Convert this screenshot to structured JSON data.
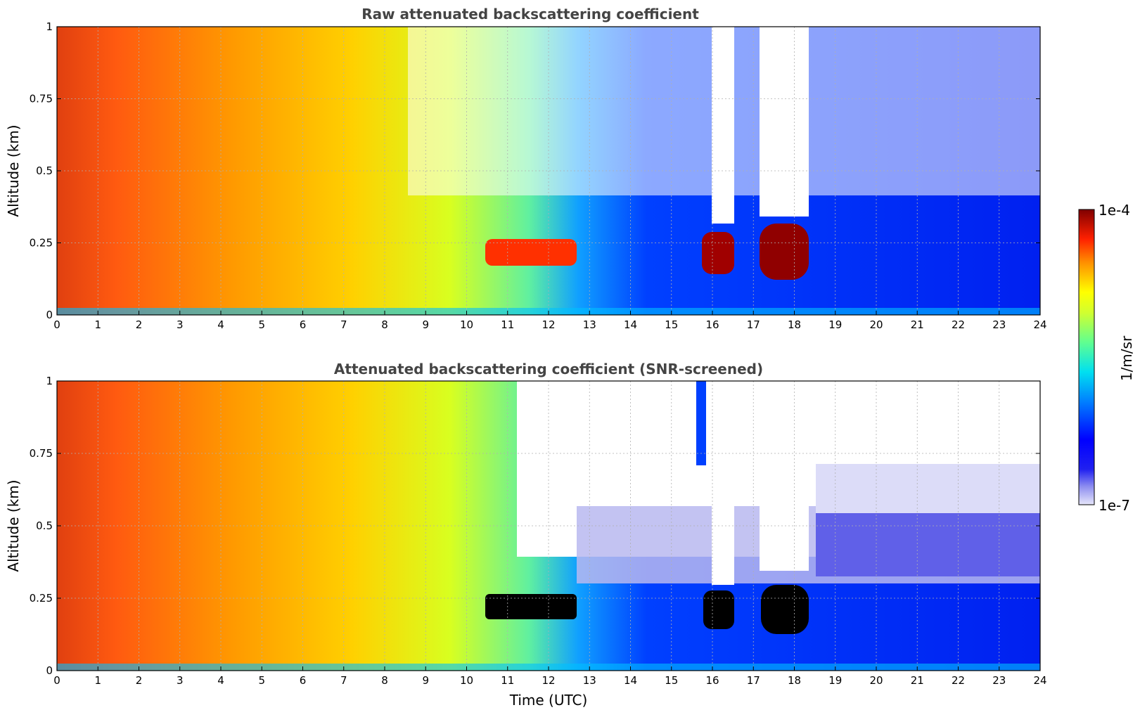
{
  "chart_data": [
    {
      "type": "heatmap",
      "title": "Raw attenuated backscattering coefficient",
      "xlabel": "",
      "ylabel": "Altitude (km)",
      "xlim": [
        0,
        24
      ],
      "ylim": [
        0,
        1
      ],
      "x_ticks": [
        "0",
        "1",
        "2",
        "3",
        "4",
        "5",
        "6",
        "7",
        "8",
        "9",
        "10",
        "11",
        "12",
        "13",
        "14",
        "15",
        "16",
        "17",
        "18",
        "19",
        "20",
        "21",
        "22",
        "23",
        "24"
      ],
      "y_ticks": [
        "0",
        "0.25",
        "0.5",
        "0.75",
        "1"
      ],
      "grid": true,
      "features": [
        {
          "name": "fog / aerosol layer",
          "t_start": 0,
          "t_end": 7,
          "alt_top": 1.0,
          "intensity": "high"
        },
        {
          "name": "cloud band",
          "t_start": 10.5,
          "t_end": 12.8,
          "alt_bottom": 0.15,
          "alt_top": 0.3,
          "intensity": "very high"
        },
        {
          "name": "cloud",
          "t_start": 15.8,
          "t_end": 16.5,
          "alt_bottom": 0.15,
          "alt_top": 0.3,
          "intensity": "very high"
        },
        {
          "name": "cloud",
          "t_start": 17.1,
          "t_end": 18.2,
          "alt_bottom": 0.12,
          "alt_top": 0.33,
          "intensity": "very high"
        }
      ]
    },
    {
      "type": "heatmap",
      "title": "Attenuated backscattering coefficient (SNR-screened)",
      "xlabel": "Time (UTC)",
      "ylabel": "Altitude (km)",
      "xlim": [
        0,
        24
      ],
      "ylim": [
        0,
        1
      ],
      "x_ticks": [
        "0",
        "1",
        "2",
        "3",
        "4",
        "5",
        "6",
        "7",
        "8",
        "9",
        "10",
        "11",
        "12",
        "13",
        "14",
        "15",
        "16",
        "17",
        "18",
        "19",
        "20",
        "21",
        "22",
        "23",
        "24"
      ],
      "y_ticks": [
        "0",
        "0.25",
        "0.5",
        "0.75",
        "1"
      ],
      "grid": true,
      "features": [
        {
          "name": "fog / aerosol layer",
          "t_start": 0,
          "t_end": 7,
          "alt_top": 1.0,
          "intensity": "high"
        },
        {
          "name": "saturated cloud band",
          "t_start": 10.5,
          "t_end": 12.8,
          "alt_bottom": 0.18,
          "alt_top": 0.3,
          "intensity": "saturated"
        },
        {
          "name": "saturated cloud",
          "t_start": 15.8,
          "t_end": 16.5,
          "alt_bottom": 0.15,
          "alt_top": 0.28,
          "intensity": "saturated"
        },
        {
          "name": "saturated cloud",
          "t_start": 17.1,
          "t_end": 18.2,
          "alt_bottom": 0.13,
          "alt_top": 0.3,
          "intensity": "saturated"
        }
      ]
    }
  ],
  "colorbar": {
    "label": "1/m/sr",
    "max_label": "1e-4",
    "min_label": "1e-7",
    "colors": [
      "#e6e6fa",
      "#b4b4f5",
      "#7878f0",
      "#3c3cf0",
      "#0000ff",
      "#0040ff",
      "#0080ff",
      "#00c0ff",
      "#00e6e6",
      "#40ff80",
      "#a0ff40",
      "#ffff00",
      "#ffc000",
      "#ff8000",
      "#ff3000",
      "#d00000",
      "#800000"
    ]
  }
}
